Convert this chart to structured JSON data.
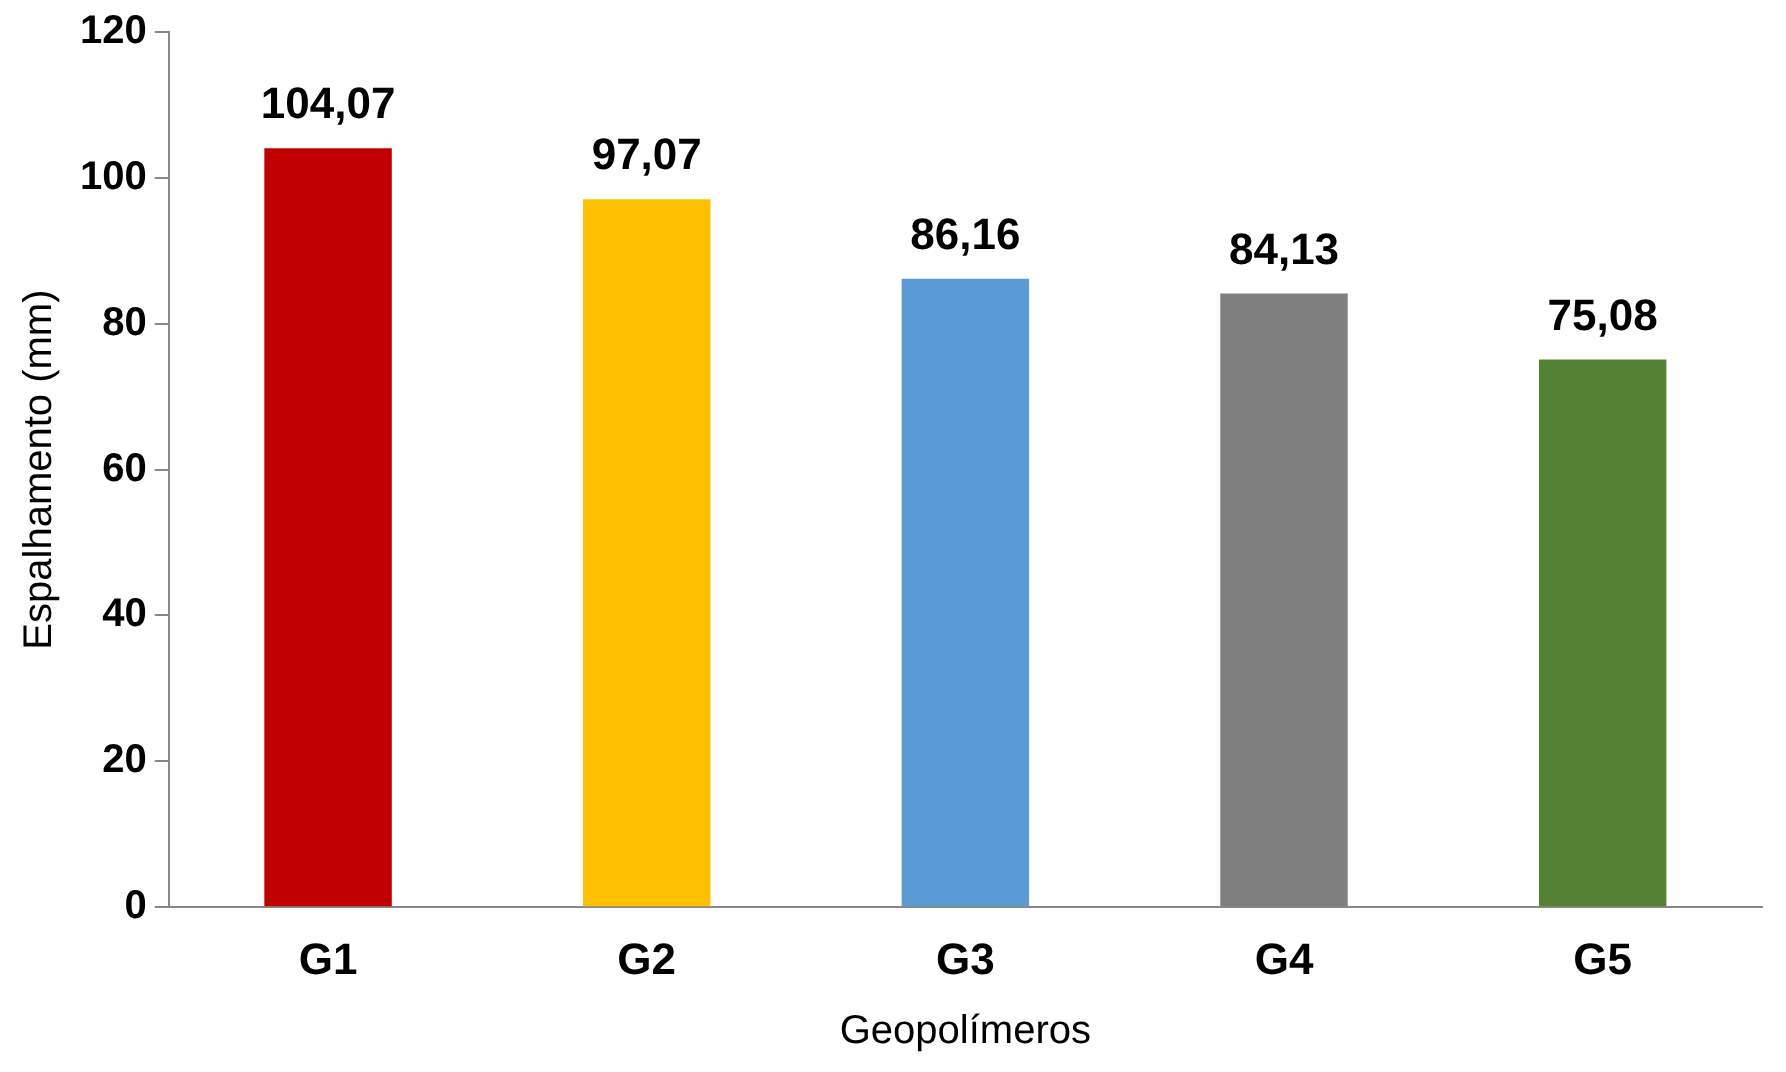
{
  "chart_data": {
    "type": "bar",
    "xlabel": "Geopolímeros",
    "ylabel": "Espalhamento (mm)",
    "categories": [
      "G1",
      "G2",
      "G3",
      "G4",
      "G5"
    ],
    "values": [
      104.07,
      97.07,
      86.16,
      84.13,
      75.08
    ],
    "colors": [
      "#c00000",
      "#ffc000",
      "#5b9bd5",
      "#7f7f7f",
      "#548235"
    ],
    "value_labels": [
      "104,07",
      "97,07",
      "86,16",
      "84,13",
      "75,08"
    ],
    "ylim": [
      0,
      120
    ],
    "yticks": [
      0,
      20,
      40,
      60,
      80,
      100,
      120
    ],
    "grid": false,
    "legend": false
  }
}
